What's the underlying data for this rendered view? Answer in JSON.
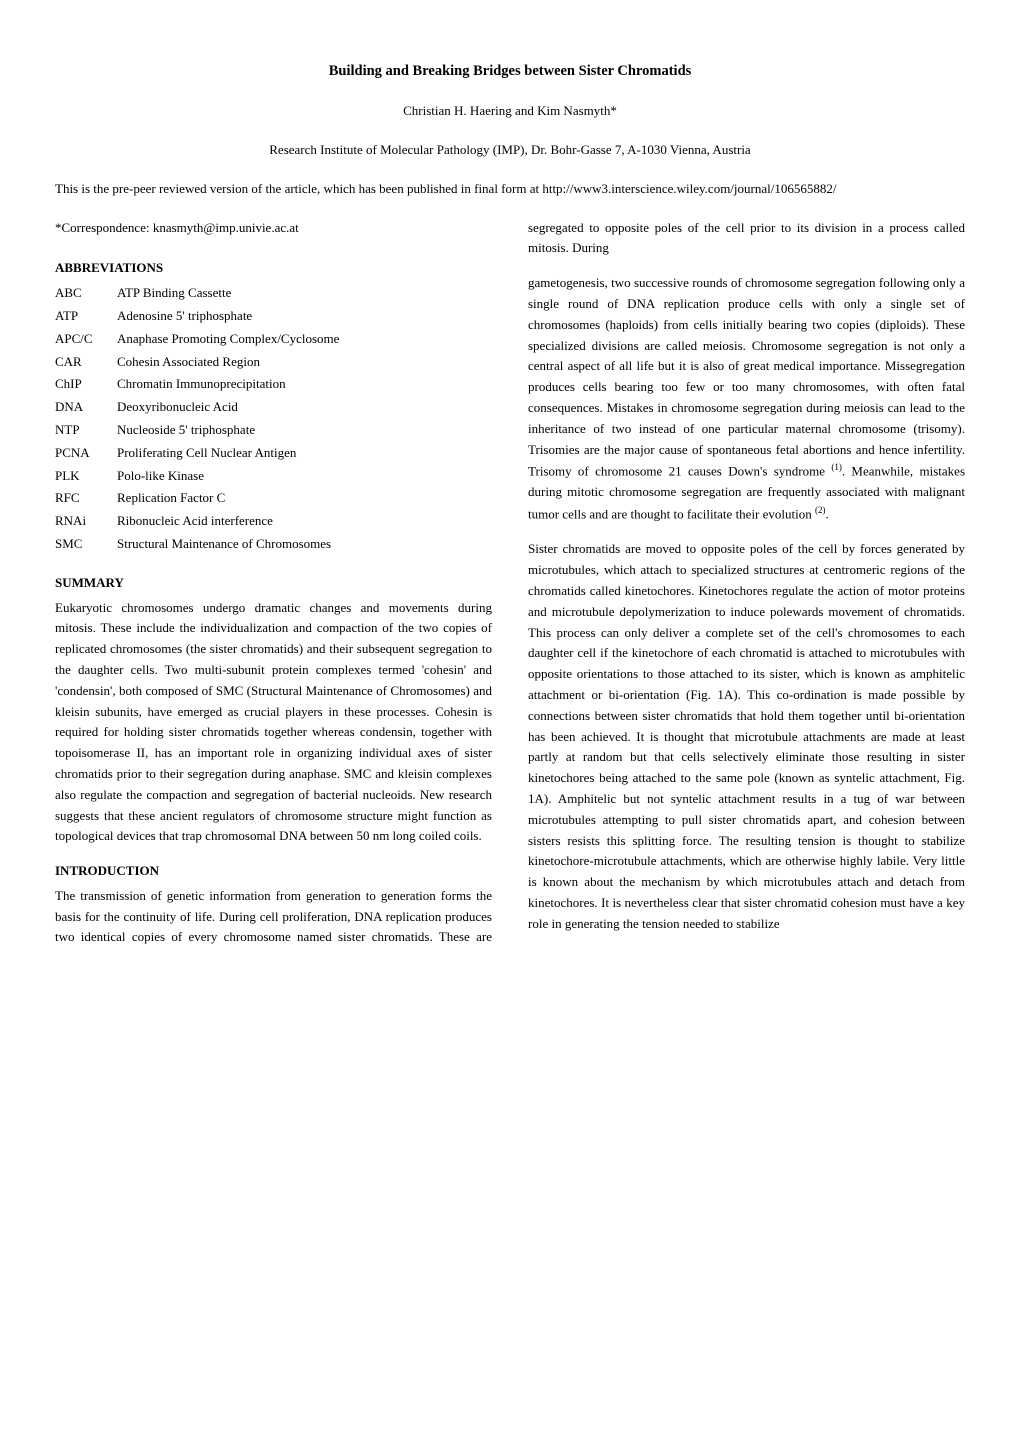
{
  "title": "Building and Breaking Bridges between Sister Chromatids",
  "authors": "Christian H. Haering and Kim Nasmyth*",
  "affiliation": "Research Institute of Molecular Pathology (IMP), Dr. Bohr-Gasse 7, A-1030 Vienna, Austria",
  "prepeer": "This is the pre-peer reviewed version of the article, which has been published in final form at http://www3.interscience.wiley.com/journal/106565882/",
  "correspondence": "*Correspondence:  knasmyth@imp.univie.ac.at",
  "abbr_heading": "ABBREVIATIONS",
  "abbreviations": [
    {
      "k": "ABC",
      "v": "ATP Binding Cassette"
    },
    {
      "k": "ATP",
      "v": "Adenosine 5' triphosphate"
    },
    {
      "k": "APC/C",
      "v": "Anaphase Promoting Complex/Cyclosome"
    },
    {
      "k": "CAR",
      "v": "Cohesin Associated Region"
    },
    {
      "k": "ChIP",
      "v": "Chromatin Immunoprecipitation"
    },
    {
      "k": "DNA",
      "v": "Deoxyribonucleic Acid"
    },
    {
      "k": "NTP",
      "v": "Nucleoside 5' triphosphate"
    },
    {
      "k": "PCNA",
      "v": "Proliferating Cell Nuclear Antigen"
    },
    {
      "k": "PLK",
      "v": "Polo-like Kinase"
    },
    {
      "k": "RFC",
      "v": "Replication Factor C"
    },
    {
      "k": "RNAi",
      "v": "Ribonucleic Acid interference"
    },
    {
      "k": "SMC",
      "v": "Structural Maintenance of Chromosomes"
    }
  ],
  "summary_heading": "SUMMARY",
  "summary_text": "Eukaryotic chromosomes undergo dramatic changes and movements during mitosis. These include the individualization and compaction of the two copies of replicated chromosomes (the sister chromatids) and their subsequent segregation to the daughter cells. Two multi-subunit protein complexes termed 'cohesin' and 'condensin', both composed of SMC (Structural Maintenance of Chromosomes) and kleisin subunits, have emerged as crucial players in these processes. Cohesin is required for holding sister chromatids together whereas condensin, together with topoisomerase II, has an important role in organizing individual axes of sister chromatids prior to their segregation during anaphase. SMC and kleisin complexes also regulate the compaction and segregation of bacterial nucleoids. New research suggests that these ancient regulators of chromosome structure might function as topological devices that trap chromosomal DNA between 50 nm long coiled coils.",
  "intro_heading": "INTRODUCTION",
  "intro_text": "The transmission of genetic information from generation to generation forms the basis for the continuity of life. During cell proliferation, DNA replication produces two identical copies of every chromosome named sister chromatids. These are segregated to opposite poles of the cell prior to its division in a process called mitosis. During",
  "right_para1_a": "gametogenesis, two successive rounds of chromosome segregation following only a single round of DNA replication produce cells with only a single set of chromosomes (haploids) from cells initially bearing two copies (diploids). These specialized divisions are called meiosis. Chromosome segregation is not only a central aspect of all life but it is also of great medical importance. Missegregation produces cells bearing too few or too many chromosomes, with often fatal consequences. Mistakes in chromosome segregation during meiosis can lead to the inheritance of two instead of one particular maternal chromosome (trisomy). Trisomies are the major cause of spontaneous fetal abortions and hence infertility. Trisomy of chromosome 21 causes Down's syndrome ",
  "right_para1_sup1": "(1)",
  "right_para1_b": ". Meanwhile, mistakes during mitotic chromosome segregation are frequently associated with malignant tumor cells and are thought to facilitate their evolution ",
  "right_para1_sup2": "(2)",
  "right_para1_c": ".",
  "right_para2": "Sister chromatids are moved to opposite poles of the cell by forces generated by microtubules, which attach to specialized structures at centromeric regions of the chromatids called kinetochores. Kinetochores regulate the action of motor proteins and microtubule depolymerization to induce polewards movement of chromatids. This process can only deliver a complete set of the cell's chromosomes to each daughter cell if the kinetochore of each chromatid is attached to microtubules with opposite orientations to those attached to its sister, which is known as amphitelic attachment or bi-orientation (Fig. 1A). This co-ordination is made possible by connections between sister chromatids that hold them together until bi-orientation has been achieved. It is thought that microtubule attachments are made at least partly at random but that cells selectively eliminate those resulting in sister kinetochores being attached to the same pole (known as syntelic attachment, Fig. 1A). Amphitelic but not syntelic attachment results in a tug of war between microtubules attempting to pull sister chromatids apart, and cohesion between sisters resists this splitting force. The resulting tension is thought to stabilize kinetochore-microtubule attachments, which are otherwise highly labile. Very little is known about the mechanism by which microtubules attach and detach from kinetochores. It is nevertheless clear that sister chromatid cohesion must have a key role in generating the tension needed to stabilize"
}
